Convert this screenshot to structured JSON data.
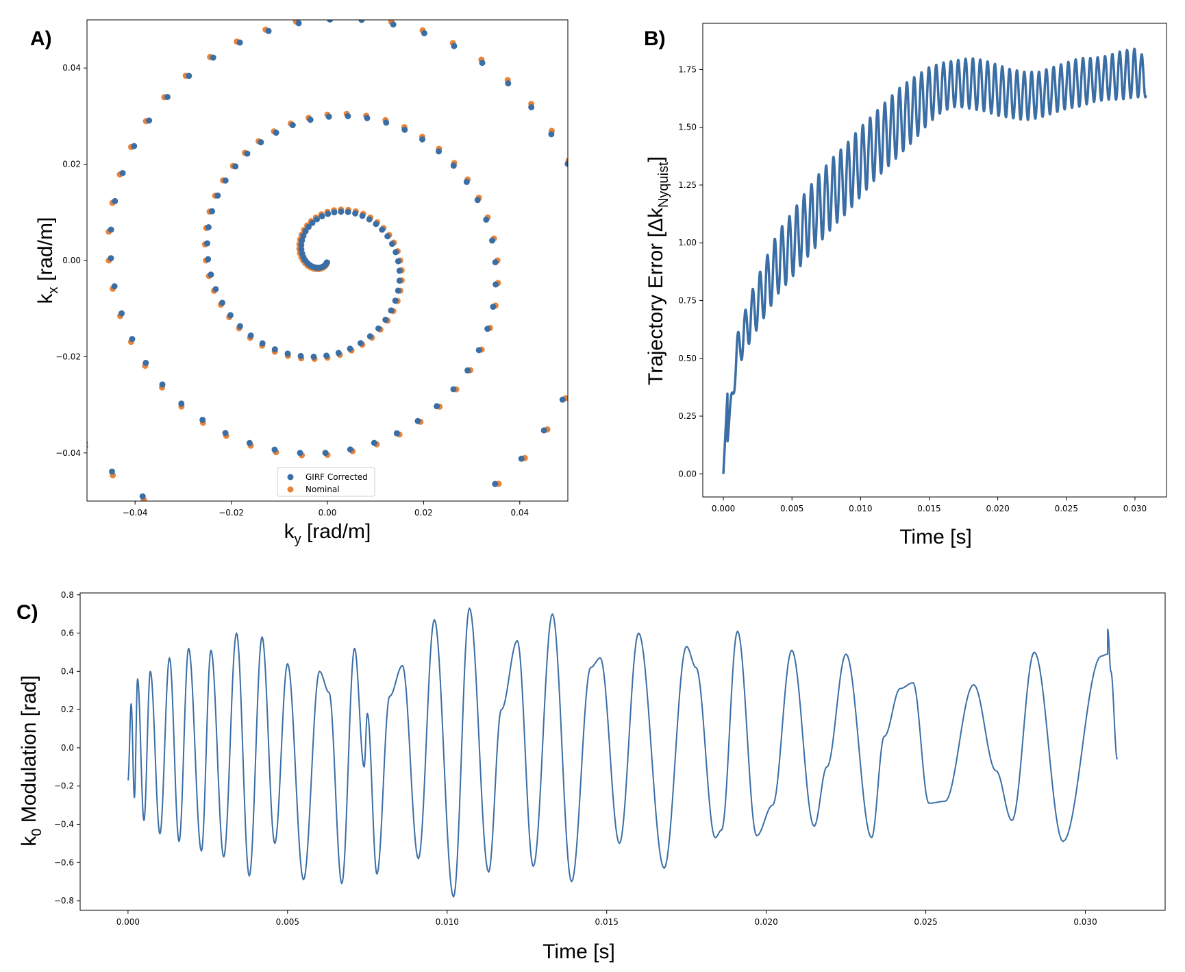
{
  "colors": {
    "corrected": "#3a6ea5",
    "nominal": "#e8833a",
    "line": "#3a6ea5"
  },
  "panels": {
    "a": "A)",
    "b": "B)",
    "c": "C)"
  },
  "chart_data": [
    {
      "type": "scatter",
      "panel": "A)",
      "title": "",
      "xlabel": "ky [rad/m]",
      "xlabel_main": "k",
      "xlabel_sub": "y",
      "xlabel_unit": " [rad/m]",
      "ylabel": "kx [rad/m]",
      "ylabel_main": "k",
      "ylabel_sub": "x",
      "ylabel_unit": " [rad/m]",
      "xlim": [
        -0.05,
        0.05
      ],
      "ylim": [
        -0.05,
        0.05
      ],
      "xticks": [
        -0.04,
        -0.02,
        0.0,
        0.02,
        0.04
      ],
      "xtick_labels": [
        "−0.04",
        "−0.02",
        "0.00",
        "0.02",
        "0.04"
      ],
      "yticks": [
        -0.04,
        -0.02,
        0.0,
        0.02,
        0.04
      ],
      "ytick_labels": [
        "−0.04",
        "−0.02",
        "0.00",
        "0.02",
        "0.04"
      ],
      "legend": {
        "position": "bottom-center",
        "entries": [
          "GIRF Corrected",
          "Nominal"
        ]
      },
      "series": [
        {
          "name": "GIRF Corrected",
          "spiral": {
            "r_per_turn": 0.0202,
            "points_per_turn": 48,
            "turns": 3.25,
            "phase_offset": 0.045,
            "x_shift": 0.0
          }
        },
        {
          "name": "Nominal",
          "spiral": {
            "r_per_turn": 0.0202,
            "points_per_turn": 48,
            "turns": 3.25,
            "phase_offset": 0.0,
            "x_shift": 0.0
          }
        }
      ]
    },
    {
      "type": "line",
      "panel": "B)",
      "title": "",
      "xlabel": "Time [s]",
      "ylabel": "Trajectory Error [ΔkNyquist]",
      "ylabel_main": "Trajectory Error [Δk",
      "ylabel_sub": "Nyquist",
      "ylabel_end": "]",
      "xlim": [
        -0.0015,
        0.0323
      ],
      "ylim": [
        -0.1,
        1.95
      ],
      "xticks": [
        0.0,
        0.005,
        0.01,
        0.015,
        0.02,
        0.025,
        0.03
      ],
      "xtick_labels": [
        "0.000",
        "0.005",
        "0.010",
        "0.015",
        "0.020",
        "0.025",
        "0.030"
      ],
      "yticks": [
        0.0,
        0.25,
        0.5,
        0.75,
        1.0,
        1.25,
        1.5,
        1.75
      ],
      "ytick_labels": [
        "0.00",
        "0.25",
        "0.50",
        "0.75",
        "1.00",
        "1.25",
        "1.50",
        "1.75"
      ],
      "x": [
        0.0,
        0.001,
        0.002,
        0.003,
        0.004,
        0.005,
        0.006,
        0.007,
        0.008,
        0.009,
        0.01,
        0.011,
        0.012,
        0.013,
        0.014,
        0.015,
        0.016,
        0.017,
        0.018,
        0.019,
        0.02,
        0.021,
        0.022,
        0.023,
        0.024,
        0.025,
        0.026,
        0.027,
        0.028,
        0.029,
        0.03,
        0.0308
      ],
      "upper": [
        0.0,
        0.6,
        0.78,
        0.92,
        1.05,
        1.13,
        1.22,
        1.3,
        1.37,
        1.43,
        1.5,
        1.56,
        1.62,
        1.68,
        1.72,
        1.76,
        1.78,
        1.79,
        1.8,
        1.79,
        1.77,
        1.75,
        1.74,
        1.74,
        1.76,
        1.78,
        1.8,
        1.8,
        1.81,
        1.83,
        1.84,
        1.8
      ],
      "lower": [
        0.0,
        0.45,
        0.58,
        0.68,
        0.78,
        0.85,
        0.93,
        1.0,
        1.07,
        1.13,
        1.2,
        1.27,
        1.33,
        1.39,
        1.45,
        1.52,
        1.57,
        1.59,
        1.58,
        1.57,
        1.55,
        1.54,
        1.53,
        1.54,
        1.56,
        1.58,
        1.59,
        1.61,
        1.62,
        1.62,
        1.63,
        1.63
      ],
      "oscillation_period": 0.000535
    },
    {
      "type": "line",
      "panel": "C)",
      "title": "",
      "xlabel": "Time [s]",
      "ylabel": "k0 Modulation [rad]",
      "ylabel_main": "k",
      "ylabel_sub": "0",
      "ylabel_unit": " Modulation [rad]",
      "xlim": [
        -0.0015,
        0.0325
      ],
      "ylim": [
        -0.85,
        0.81
      ],
      "xticks": [
        0.0,
        0.005,
        0.01,
        0.015,
        0.02,
        0.025,
        0.03
      ],
      "xtick_labels": [
        "0.000",
        "0.005",
        "0.010",
        "0.015",
        "0.020",
        "0.025",
        "0.030"
      ],
      "yticks": [
        -0.8,
        -0.6,
        -0.4,
        -0.2,
        0.0,
        0.2,
        0.4,
        0.6,
        0.8
      ],
      "ytick_labels": [
        "−0.8",
        "−0.6",
        "−0.4",
        "−0.2",
        "0.0",
        "0.2",
        "0.4",
        "0.6",
        "0.8"
      ],
      "extrema": [
        [
          0.0,
          -0.17
        ],
        [
          0.0001,
          0.23
        ],
        [
          0.0002,
          -0.26
        ],
        [
          0.0003,
          0.36
        ],
        [
          0.0005,
          -0.38
        ],
        [
          0.0007,
          0.4
        ],
        [
          0.001,
          -0.45
        ],
        [
          0.0013,
          0.47
        ],
        [
          0.0016,
          -0.49
        ],
        [
          0.0019,
          0.52
        ],
        [
          0.0023,
          -0.54
        ],
        [
          0.0026,
          0.51
        ],
        [
          0.003,
          -0.57
        ],
        [
          0.0034,
          0.6
        ],
        [
          0.0038,
          -0.67
        ],
        [
          0.0042,
          0.58
        ],
        [
          0.0046,
          -0.5
        ],
        [
          0.005,
          0.44
        ],
        [
          0.0055,
          -0.69
        ],
        [
          0.006,
          0.4
        ],
        [
          0.0063,
          0.29
        ],
        [
          0.0067,
          -0.71
        ],
        [
          0.0071,
          0.52
        ],
        [
          0.0074,
          -0.1
        ],
        [
          0.0075,
          0.18
        ],
        [
          0.0078,
          -0.66
        ],
        [
          0.0082,
          0.27
        ],
        [
          0.0086,
          0.43
        ],
        [
          0.0091,
          -0.58
        ],
        [
          0.0096,
          0.67
        ],
        [
          0.0102,
          -0.78
        ],
        [
          0.0107,
          0.73
        ],
        [
          0.0113,
          -0.65
        ],
        [
          0.0117,
          0.2
        ],
        [
          0.0122,
          0.56
        ],
        [
          0.0127,
          -0.62
        ],
        [
          0.0133,
          0.7
        ],
        [
          0.0139,
          -0.7
        ],
        [
          0.0145,
          0.42
        ],
        [
          0.0148,
          0.47
        ],
        [
          0.0154,
          -0.5
        ],
        [
          0.016,
          0.6
        ],
        [
          0.0168,
          -0.63
        ],
        [
          0.0175,
          0.53
        ],
        [
          0.0178,
          0.42
        ],
        [
          0.0184,
          -0.47
        ],
        [
          0.0186,
          -0.43
        ],
        [
          0.0191,
          0.61
        ],
        [
          0.0197,
          -0.46
        ],
        [
          0.0202,
          -0.3
        ],
        [
          0.0208,
          0.51
        ],
        [
          0.0215,
          -0.41
        ],
        [
          0.0219,
          -0.1
        ],
        [
          0.0225,
          0.49
        ],
        [
          0.0233,
          -0.47
        ],
        [
          0.0237,
          0.06
        ],
        [
          0.0242,
          0.31
        ],
        [
          0.0246,
          0.34
        ],
        [
          0.0251,
          -0.29
        ],
        [
          0.0256,
          -0.28
        ],
        [
          0.0265,
          0.33
        ],
        [
          0.0272,
          -0.12
        ],
        [
          0.0277,
          -0.38
        ],
        [
          0.0284,
          0.5
        ],
        [
          0.0293,
          -0.49
        ],
        [
          0.0305,
          0.48
        ],
        [
          0.0307,
          0.49
        ],
        [
          0.0307,
          0.62
        ],
        [
          0.0308,
          0.4
        ],
        [
          0.031,
          -0.06
        ]
      ]
    }
  ]
}
